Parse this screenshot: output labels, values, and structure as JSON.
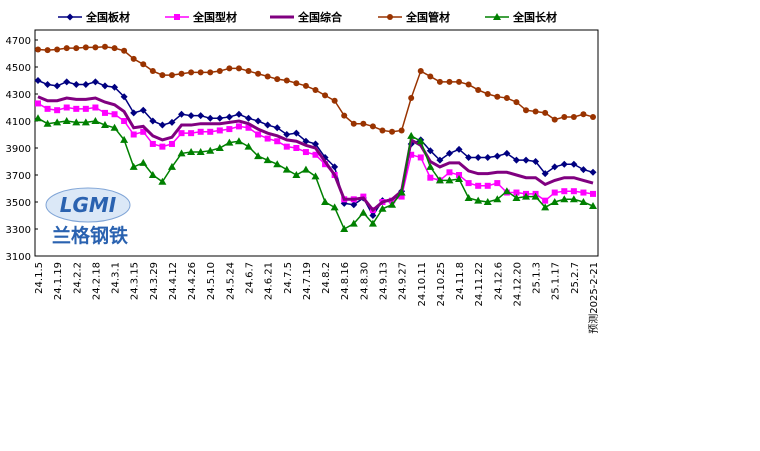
{
  "chart_data": {
    "type": "line",
    "categories": [
      "24.1.5",
      null,
      "24.1.19",
      null,
      "24.2.2",
      null,
      "24.2.18",
      null,
      "24.3.1",
      null,
      "24.3.15",
      null,
      "24.3.29",
      null,
      "24.4.12",
      null,
      "24.4.26",
      null,
      "24.5.10",
      null,
      "24.5.24",
      null,
      "24.6.7",
      null,
      "24.6.21",
      null,
      "24.7.5",
      null,
      "24.7.19",
      null,
      "24.8.2",
      null,
      "24.8.16",
      null,
      "24.8.30",
      null,
      "24.9.13",
      null,
      "24.9.27",
      null,
      "24.10.11",
      null,
      "24.10.25",
      null,
      "24.11.8",
      null,
      "24.11.22",
      null,
      "24.12.6",
      null,
      "24.12.20",
      null,
      "25.1.3",
      null,
      "25.1.17",
      null,
      "25.2.7",
      null,
      "预测2025-2-21"
    ],
    "series": [
      {
        "name": "全国板材",
        "color": "#000080",
        "marker": "diamond",
        "values": [
          4400,
          4370,
          4360,
          4390,
          4370,
          4370,
          4390,
          4360,
          4350,
          4280,
          4160,
          4180,
          4100,
          4070,
          4090,
          4150,
          4140,
          4140,
          4120,
          4120,
          4130,
          4150,
          4120,
          4100,
          4070,
          4050,
          4000,
          4010,
          3950,
          3930,
          3830,
          3760,
          3490,
          3480,
          3530,
          3400,
          3510,
          3500,
          3580,
          3930,
          3960,
          3880,
          3810,
          3860,
          3890,
          3830,
          3830,
          3830,
          3840,
          3860,
          3810,
          3810,
          3800,
          3710,
          3760,
          3780,
          3780,
          3740,
          3720
        ]
      },
      {
        "name": "全国型材",
        "color": "#ff00ff",
        "marker": "square",
        "values": [
          4230,
          4190,
          4180,
          4200,
          4190,
          4190,
          4200,
          4160,
          4150,
          4100,
          4000,
          4020,
          3930,
          3910,
          3930,
          4010,
          4010,
          4020,
          4020,
          4030,
          4040,
          4060,
          4050,
          4000,
          3970,
          3950,
          3910,
          3900,
          3870,
          3850,
          3780,
          3700,
          3520,
          3520,
          3540,
          3440,
          3500,
          3510,
          3540,
          3850,
          3830,
          3680,
          3660,
          3720,
          3700,
          3640,
          3620,
          3620,
          3640,
          3570,
          3570,
          3560,
          3560,
          3510,
          3570,
          3580,
          3580,
          3570,
          3560
        ]
      },
      {
        "name": "全国综合",
        "color": "#800080",
        "marker": "none",
        "values": [
          4280,
          4250,
          4250,
          4270,
          4260,
          4260,
          4270,
          4240,
          4220,
          4170,
          4050,
          4060,
          3990,
          3960,
          3980,
          4070,
          4070,
          4080,
          4080,
          4080,
          4090,
          4100,
          4080,
          4040,
          4010,
          3990,
          3960,
          3950,
          3920,
          3900,
          3800,
          3700,
          3520,
          3520,
          3530,
          3440,
          3500,
          3520,
          3580,
          3960,
          3920,
          3800,
          3760,
          3790,
          3790,
          3730,
          3710,
          3710,
          3720,
          3720,
          3700,
          3680,
          3680,
          3630,
          3660,
          3680,
          3680,
          3660,
          3640
        ]
      },
      {
        "name": "全国管材",
        "color": "#993300",
        "marker": "circle",
        "values": [
          4630,
          4625,
          4630,
          4640,
          4640,
          4645,
          4645,
          4650,
          4640,
          4620,
          4560,
          4520,
          4470,
          4440,
          4440,
          4450,
          4460,
          4460,
          4460,
          4470,
          4490,
          4490,
          4470,
          4450,
          4430,
          4410,
          4400,
          4380,
          4360,
          4330,
          4290,
          4250,
          4140,
          4080,
          4080,
          4060,
          4030,
          4020,
          4030,
          4270,
          4470,
          4430,
          4390,
          4390,
          4390,
          4370,
          4330,
          4300,
          4280,
          4270,
          4240,
          4180,
          4170,
          4160,
          4110,
          4130,
          4130,
          4150,
          4130
        ]
      },
      {
        "name": "全国长材",
        "color": "#008000",
        "marker": "triangle",
        "values": [
          4120,
          4080,
          4090,
          4100,
          4090,
          4090,
          4100,
          4070,
          4050,
          3960,
          3760,
          3790,
          3700,
          3650,
          3760,
          3860,
          3870,
          3870,
          3880,
          3900,
          3940,
          3950,
          3910,
          3840,
          3810,
          3780,
          3740,
          3700,
          3740,
          3690,
          3500,
          3460,
          3300,
          3340,
          3420,
          3340,
          3450,
          3480,
          3570,
          3990,
          3950,
          3760,
          3660,
          3660,
          3670,
          3530,
          3510,
          3500,
          3520,
          3580,
          3530,
          3540,
          3540,
          3460,
          3500,
          3520,
          3520,
          3500,
          3470
        ]
      }
    ],
    "ylim": [
      3100,
      4700
    ],
    "yticks": [
      3100,
      3300,
      3500,
      3700,
      3900,
      4100,
      4300,
      4500,
      4700
    ],
    "watermark": {
      "logo": "LGMI",
      "text": "兰格钢铁"
    }
  }
}
